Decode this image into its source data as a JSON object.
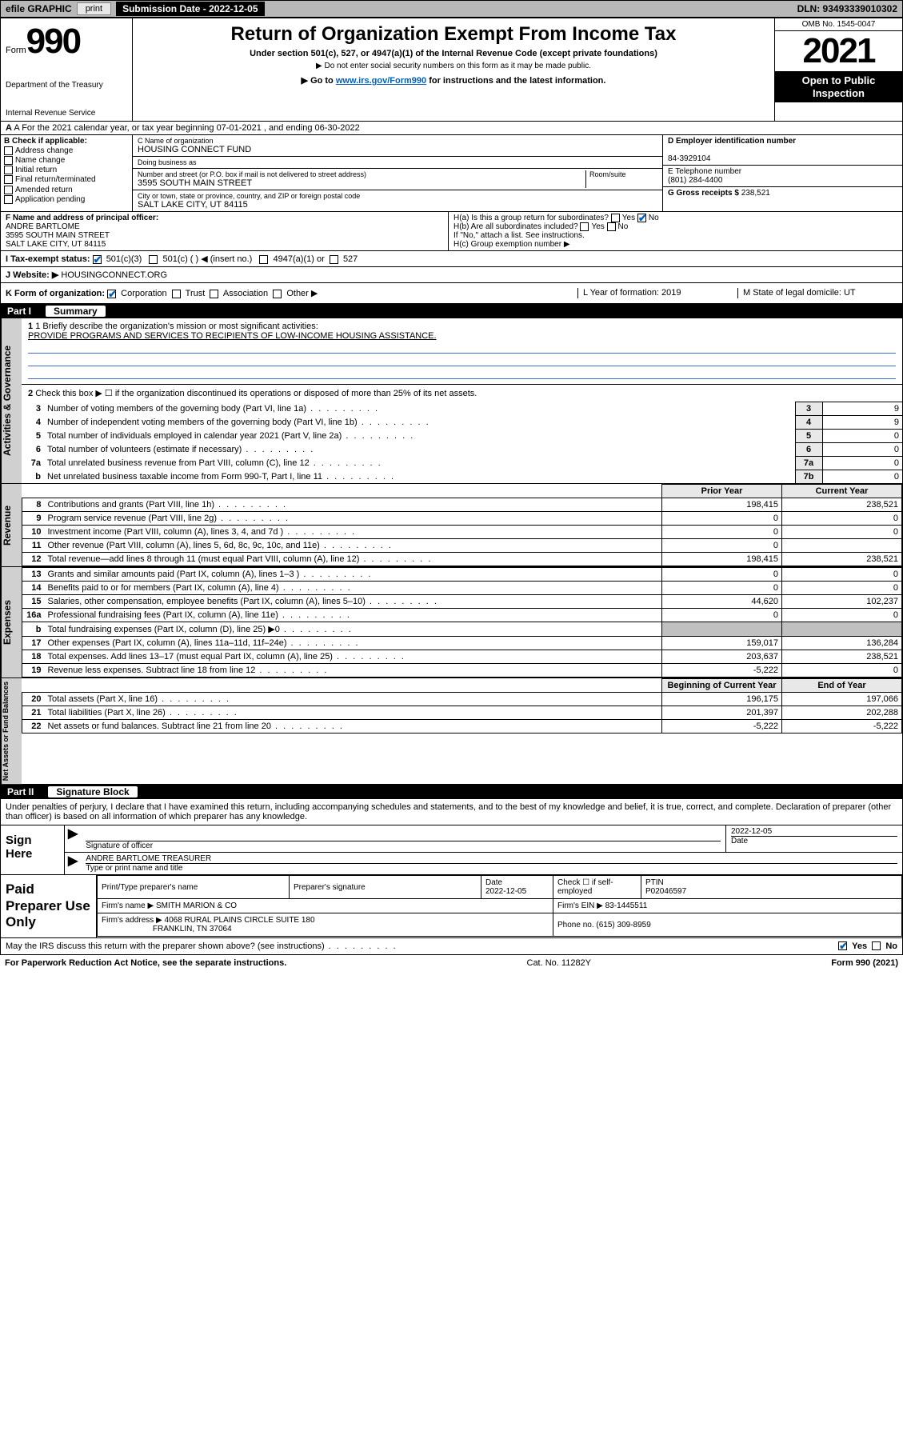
{
  "topbar": {
    "efile": "efile GRAPHIC",
    "print": "print",
    "submission_label": "Submission Date - 2022-12-05",
    "dln": "DLN: 93493339010302"
  },
  "header": {
    "form_word": "Form",
    "form_num": "990",
    "dept": "Department of the Treasury",
    "irs": "Internal Revenue Service",
    "title": "Return of Organization Exempt From Income Tax",
    "sub1": "Under section 501(c), 527, or 4947(a)(1) of the Internal Revenue Code (except private foundations)",
    "sub2": "▶ Do not enter social security numbers on this form as it may be made public.",
    "sub3_pre": "▶ Go to ",
    "sub3_link": "www.irs.gov/Form990",
    "sub3_post": " for instructions and the latest information.",
    "omb": "OMB No. 1545-0047",
    "year": "2021",
    "open": "Open to Public Inspection"
  },
  "row_a": "A For the 2021 calendar year, or tax year beginning 07-01-2021   , and ending 06-30-2022",
  "col_b": {
    "title": "B Check if applicable:",
    "opts": [
      "Address change",
      "Name change",
      "Initial return",
      "Final return/terminated",
      "Amended return",
      "Application pending"
    ]
  },
  "col_c": {
    "name_lbl": "C Name of organization",
    "name": "HOUSING CONNECT FUND",
    "dba_lbl": "Doing business as",
    "dba": "",
    "addr_lbl": "Number and street (or P.O. box if mail is not delivered to street address)",
    "room_lbl": "Room/suite",
    "addr": "3595 SOUTH MAIN STREET",
    "city_lbl": "City or town, state or province, country, and ZIP or foreign postal code",
    "city": "SALT LAKE CITY, UT  84115"
  },
  "col_de": {
    "d_lbl": "D Employer identification number",
    "ein": "84-3929104",
    "e_lbl": "E Telephone number",
    "phone": "(801) 284-4400",
    "g_lbl": "G Gross receipts $",
    "gross": "238,521"
  },
  "row_f": {
    "f_lbl": "F Name and address of principal officer:",
    "f_name": "ANDRE BARTLOME",
    "f_addr1": "3595 SOUTH MAIN STREET",
    "f_addr2": "SALT LAKE CITY, UT  84115",
    "ha": "H(a)  Is this a group return for subordinates?",
    "ha_ans": "No",
    "hb": "H(b)  Are all subordinates included?",
    "hb_note": "If \"No,\" attach a list. See instructions.",
    "hc": "H(c)  Group exemption number ▶"
  },
  "row_i": {
    "lbl": "I   Tax-exempt status:",
    "opt1": "501(c)(3)",
    "opt2": "501(c) (    ) ◀ (insert no.)",
    "opt3": "4947(a)(1) or",
    "opt4": "527"
  },
  "row_j": {
    "lbl": "J   Website: ▶",
    "val": "HOUSINGCONNECT.ORG"
  },
  "row_k": {
    "lbl": "K Form of organization:",
    "opts": [
      "Corporation",
      "Trust",
      "Association",
      "Other ▶"
    ],
    "l": "L Year of formation: 2019",
    "m": "M State of legal domicile: UT"
  },
  "part1": {
    "hdr_num": "Part I",
    "hdr_title": "Summary",
    "vtab1": "Activities & Governance",
    "q1_lbl": "1  Briefly describe the organization's mission or most significant activities:",
    "q1_txt": "PROVIDE PROGRAMS AND SERVICES TO RECIPIENTS OF LOW-INCOME HOUSING ASSISTANCE.",
    "q2": "Check this box ▶ ☐  if the organization discontinued its operations or disposed of more than 25% of its net assets.",
    "lines_gov": [
      {
        "n": "3",
        "d": "Number of voting members of the governing body (Part VI, line 1a)",
        "box": "3",
        "v": "9"
      },
      {
        "n": "4",
        "d": "Number of independent voting members of the governing body (Part VI, line 1b)",
        "box": "4",
        "v": "9"
      },
      {
        "n": "5",
        "d": "Total number of individuals employed in calendar year 2021 (Part V, line 2a)",
        "box": "5",
        "v": "0"
      },
      {
        "n": "6",
        "d": "Total number of volunteers (estimate if necessary)",
        "box": "6",
        "v": "0"
      },
      {
        "n": "7a",
        "d": "Total unrelated business revenue from Part VIII, column (C), line 12",
        "box": "7a",
        "v": "0"
      },
      {
        "n": "b",
        "d": "Net unrelated business taxable income from Form 990-T, Part I, line 11",
        "box": "7b",
        "v": "0"
      }
    ],
    "col_py": "Prior Year",
    "col_cy": "Current Year",
    "vtab2": "Revenue",
    "lines_rev": [
      {
        "n": "8",
        "d": "Contributions and grants (Part VIII, line 1h)",
        "py": "198,415",
        "cy": "238,521"
      },
      {
        "n": "9",
        "d": "Program service revenue (Part VIII, line 2g)",
        "py": "0",
        "cy": "0"
      },
      {
        "n": "10",
        "d": "Investment income (Part VIII, column (A), lines 3, 4, and 7d )",
        "py": "0",
        "cy": "0"
      },
      {
        "n": "11",
        "d": "Other revenue (Part VIII, column (A), lines 5, 6d, 8c, 9c, 10c, and 11e)",
        "py": "0",
        "cy": ""
      },
      {
        "n": "12",
        "d": "Total revenue—add lines 8 through 11 (must equal Part VIII, column (A), line 12)",
        "py": "198,415",
        "cy": "238,521"
      }
    ],
    "vtab3": "Expenses",
    "lines_exp": [
      {
        "n": "13",
        "d": "Grants and similar amounts paid (Part IX, column (A), lines 1–3 )",
        "py": "0",
        "cy": "0"
      },
      {
        "n": "14",
        "d": "Benefits paid to or for members (Part IX, column (A), line 4)",
        "py": "0",
        "cy": "0"
      },
      {
        "n": "15",
        "d": "Salaries, other compensation, employee benefits (Part IX, column (A), lines 5–10)",
        "py": "44,620",
        "cy": "102,237"
      },
      {
        "n": "16a",
        "d": "Professional fundraising fees (Part IX, column (A), line 11e)",
        "py": "0",
        "cy": "0"
      },
      {
        "n": "b",
        "d": "Total fundraising expenses (Part IX, column (D), line 25) ▶0",
        "py": "",
        "cy": "",
        "gray": true
      },
      {
        "n": "17",
        "d": "Other expenses (Part IX, column (A), lines 11a–11d, 11f–24e)",
        "py": "159,017",
        "cy": "136,284"
      },
      {
        "n": "18",
        "d": "Total expenses. Add lines 13–17 (must equal Part IX, column (A), line 25)",
        "py": "203,637",
        "cy": "238,521"
      },
      {
        "n": "19",
        "d": "Revenue less expenses. Subtract line 18 from line 12",
        "py": "-5,222",
        "cy": "0"
      }
    ],
    "col_boy": "Beginning of Current Year",
    "col_eoy": "End of Year",
    "vtab4": "Net Assets or Fund Balances",
    "lines_na": [
      {
        "n": "20",
        "d": "Total assets (Part X, line 16)",
        "py": "196,175",
        "cy": "197,066"
      },
      {
        "n": "21",
        "d": "Total liabilities (Part X, line 26)",
        "py": "201,397",
        "cy": "202,288"
      },
      {
        "n": "22",
        "d": "Net assets or fund balances. Subtract line 21 from line 20",
        "py": "-5,222",
        "cy": "-5,222"
      }
    ]
  },
  "part2": {
    "hdr_num": "Part II",
    "hdr_title": "Signature Block",
    "intro": "Under penalties of perjury, I declare that I have examined this return, including accompanying schedules and statements, and to the best of my knowledge and belief, it is true, correct, and complete. Declaration of preparer (other than officer) is based on all information of which preparer has any knowledge.",
    "sign_here": "Sign Here",
    "sig_officer_lbl": "Signature of officer",
    "sig_date_lbl": "Date",
    "sig_date": "2022-12-05",
    "officer": "ANDRE BARTLOME  TREASURER",
    "officer_lbl": "Type or print name and title",
    "paid_prep": "Paid Preparer Use Only",
    "prep_name_lbl": "Print/Type preparer's name",
    "prep_sig_lbl": "Preparer's signature",
    "prep_date_lbl": "Date",
    "prep_date": "2022-12-05",
    "prep_check": "Check ☐ if self-employed",
    "ptin_lbl": "PTIN",
    "ptin": "P02046597",
    "firm_name_lbl": "Firm's name      ▶",
    "firm_name": "SMITH MARION & CO",
    "firm_ein_lbl": "Firm's EIN ▶",
    "firm_ein": "83-1445511",
    "firm_addr_lbl": "Firm's address ▶",
    "firm_addr1": "4068 RURAL PLAINS CIRCLE SUITE 180",
    "firm_addr2": "FRANKLIN, TN  37064",
    "firm_phone_lbl": "Phone no.",
    "firm_phone": "(615) 309-8959",
    "discuss": "May the IRS discuss this return with the preparer shown above? (see instructions)",
    "discuss_yes": "Yes",
    "discuss_no": "No"
  },
  "footer": {
    "left": "For Paperwork Reduction Act Notice, see the separate instructions.",
    "mid": "Cat. No. 11282Y",
    "right": "Form 990 (2021)"
  }
}
